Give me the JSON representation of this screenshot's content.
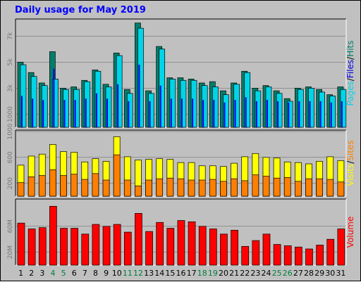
{
  "title": "Daily usage for May 2019",
  "colors": {
    "background": "#c0c0c0",
    "pages": "#00d4e8",
    "files": "#0000e8",
    "hits": "#007f6a",
    "visits": "#ffff00",
    "sites": "#ff8000",
    "volume": "#ff0000",
    "weekend_label": "#007f3a",
    "weekday_label": "#000000"
  },
  "chart_data": [
    {
      "type": "bar",
      "panel": "top",
      "labels": [
        "Pages",
        "/",
        "Files",
        "/",
        "Hits"
      ],
      "yticks": [
        "1000",
        "3k",
        "5k",
        "7k"
      ],
      "yticks_values": [
        1000,
        3000,
        5000,
        7000
      ],
      "ylim": [
        0,
        8200
      ],
      "categories": [
        "1",
        "2",
        "3",
        "4",
        "5",
        "6",
        "7",
        "8",
        "9",
        "10",
        "11",
        "12",
        "13",
        "14",
        "15",
        "16",
        "17",
        "18",
        "19",
        "20",
        "21",
        "22",
        "23",
        "24",
        "25",
        "26",
        "27",
        "28",
        "29",
        "30",
        "31"
      ],
      "series": [
        {
          "name": "Hits",
          "values": [
            5000,
            4200,
            3400,
            5800,
            3000,
            3100,
            3600,
            4400,
            3300,
            5700,
            2900,
            8000,
            2800,
            6200,
            3800,
            3800,
            3700,
            3400,
            3500,
            2800,
            3400,
            4300,
            3000,
            3200,
            2800,
            2200,
            3000,
            3100,
            2900,
            2500,
            3100
          ]
        },
        {
          "name": "Pages",
          "values": [
            4800,
            3900,
            3200,
            3700,
            2900,
            2900,
            3500,
            4300,
            3100,
            5500,
            2600,
            7600,
            2600,
            6000,
            3700,
            3600,
            3600,
            3200,
            3100,
            2500,
            3300,
            4200,
            2800,
            3100,
            2600,
            2000,
            2900,
            3000,
            2700,
            2400,
            2900
          ]
        },
        {
          "name": "Files",
          "values": [
            2400,
            2200,
            2100,
            4500,
            2100,
            2100,
            2200,
            2600,
            2200,
            3300,
            2000,
            4800,
            2000,
            3200,
            2200,
            2200,
            2200,
            2100,
            2100,
            1900,
            2100,
            2300,
            2000,
            2100,
            2000,
            1900,
            2000,
            2000,
            2000,
            1900,
            2000
          ]
        }
      ]
    },
    {
      "type": "bar",
      "panel": "middle",
      "labels": [
        "Visits",
        "/",
        "Sites"
      ],
      "yticks": [
        "200",
        "600",
        "1000"
      ],
      "yticks_values": [
        200,
        600,
        1000
      ],
      "ylim": [
        0,
        1000
      ],
      "categories": [
        "1",
        "2",
        "3",
        "4",
        "5",
        "6",
        "7",
        "8",
        "9",
        "10",
        "11",
        "12",
        "13",
        "14",
        "15",
        "16",
        "17",
        "18",
        "19",
        "20",
        "21",
        "22",
        "23",
        "24",
        "25",
        "26",
        "27",
        "28",
        "29",
        "30",
        "31"
      ],
      "series": [
        {
          "name": "Visits",
          "values": [
            480,
            620,
            650,
            800,
            690,
            680,
            530,
            580,
            540,
            920,
            610,
            560,
            570,
            580,
            570,
            520,
            520,
            470,
            470,
            460,
            510,
            610,
            660,
            600,
            590,
            530,
            520,
            500,
            540,
            610,
            550
          ]
        },
        {
          "name": "Sites",
          "values": [
            210,
            300,
            320,
            410,
            320,
            340,
            260,
            350,
            250,
            640,
            250,
            160,
            250,
            270,
            280,
            270,
            250,
            250,
            260,
            230,
            270,
            240,
            330,
            310,
            280,
            290,
            230,
            270,
            270,
            260,
            220
          ]
        }
      ]
    },
    {
      "type": "bar",
      "panel": "bottom",
      "labels": [
        "Volume"
      ],
      "yticks": [
        "20M",
        "60M"
      ],
      "yticks_values": [
        20,
        60
      ],
      "ylim": [
        0,
        100
      ],
      "categories": [
        "1",
        "2",
        "3",
        "4",
        "5",
        "6",
        "7",
        "8",
        "9",
        "10",
        "11",
        "12",
        "13",
        "14",
        "15",
        "16",
        "17",
        "18",
        "19",
        "20",
        "21",
        "22",
        "23",
        "24",
        "25",
        "26",
        "27",
        "28",
        "29",
        "30",
        "31"
      ],
      "series": [
        {
          "name": "Volume",
          "values": [
            65,
            56,
            58,
            91,
            57,
            57,
            48,
            63,
            60,
            63,
            51,
            80,
            52,
            66,
            57,
            69,
            67,
            60,
            56,
            48,
            54,
            29,
            38,
            48,
            32,
            30,
            28,
            25,
            31,
            40,
            56
          ]
        }
      ]
    }
  ],
  "x_axis": {
    "labels": [
      "1",
      "2",
      "3",
      "4",
      "5",
      "6",
      "7",
      "8",
      "9",
      "10",
      "11",
      "12",
      "13",
      "14",
      "15",
      "16",
      "17",
      "18",
      "19",
      "20",
      "21",
      "22",
      "23",
      "24",
      "25",
      "26",
      "27",
      "28",
      "29",
      "30",
      "31"
    ],
    "weekend_days": [
      4,
      5,
      11,
      12,
      18,
      19,
      25,
      26
    ]
  }
}
